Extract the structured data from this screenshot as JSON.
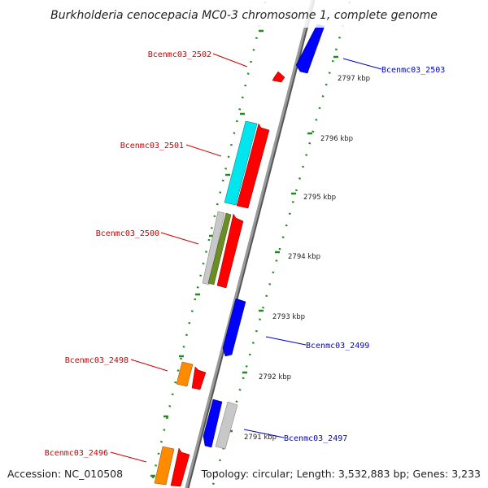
{
  "title": "Burkholderia cenocepacia MC0-3 chromosome 1, complete genome",
  "accession": "Accession: NC_010508",
  "summary": "Topology: circular; Length: 3,532,883 bp; Genes: 3,233",
  "colors": {
    "backbone": "#8a8a8a",
    "gc_ticks": "#1e8c1e",
    "forward_label": "#0000cc",
    "reverse_label": "#cc0000",
    "cog_red": "#ff0000",
    "cog_blue": "#0000ff",
    "cog_cyan": "#00e5ee",
    "cog_orange": "#ff8c00",
    "cog_olive": "#6b8e23",
    "cog_gray": "#c8c8c8"
  },
  "scale_labels": [
    "2797 kbp",
    "2796 kbp",
    "2795 kbp",
    "2794 kbp",
    "2793 kbp",
    "2792 kbp",
    "2791 kbp"
  ],
  "genes": [
    {
      "name": "Bcenmc03_2503",
      "strand": "+"
    },
    {
      "name": "Bcenmc03_2502",
      "strand": "-"
    },
    {
      "name": "Bcenmc03_2501",
      "strand": "-"
    },
    {
      "name": "Bcenmc03_2500",
      "strand": "-"
    },
    {
      "name": "Bcenmc03_2499",
      "strand": "+"
    },
    {
      "name": "Bcenmc03_2498",
      "strand": "-"
    },
    {
      "name": "Bcenmc03_2497",
      "strand": "+"
    },
    {
      "name": "Bcenmc03_2496",
      "strand": "-"
    }
  ]
}
